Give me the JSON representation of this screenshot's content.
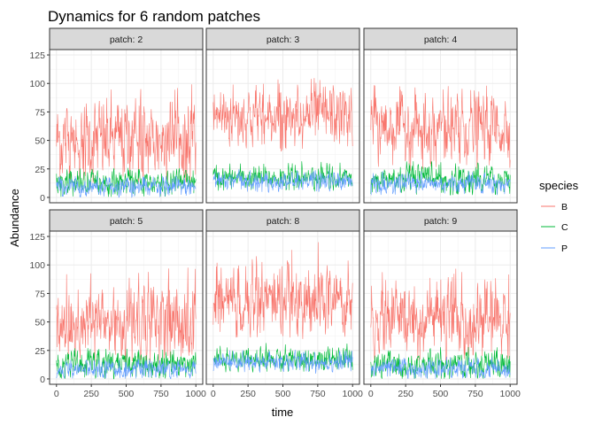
{
  "chart_data": {
    "type": "line",
    "title": "Dynamics for 6 random patches",
    "xlabel": "time",
    "ylabel": "Abundance",
    "xlim": [
      0,
      1000
    ],
    "ylim": [
      0,
      125
    ],
    "x_ticks": [
      0,
      250,
      500,
      750,
      1000
    ],
    "y_ticks": [
      0,
      25,
      50,
      75,
      100,
      125
    ],
    "x_tick_labels": [
      "0",
      "250",
      "500",
      "750",
      "1000"
    ],
    "y_tick_labels": [
      "0",
      "25",
      "50",
      "75",
      "100",
      "125"
    ],
    "grid": true,
    "legend": {
      "title": "species",
      "position": "right",
      "entries": [
        {
          "name": "B",
          "color": "#F8766D"
        },
        {
          "name": "C",
          "color": "#00BA38"
        },
        {
          "name": "P",
          "color": "#619CFF"
        }
      ]
    },
    "panels": [
      {
        "label": "patch: 2",
        "series": [
          {
            "name": "B",
            "mean": 50,
            "spread": 17,
            "max": 100,
            "min": 12
          },
          {
            "name": "C",
            "mean": 13,
            "spread": 6,
            "max": 26,
            "min": 0
          },
          {
            "name": "P",
            "mean": 9,
            "spread": 4,
            "max": 19,
            "min": 0
          }
        ]
      },
      {
        "label": "patch: 3",
        "series": [
          {
            "name": "B",
            "mean": 72,
            "spread": 13,
            "max": 115,
            "min": 40
          },
          {
            "name": "C",
            "mean": 17,
            "spread": 5,
            "max": 35,
            "min": 5
          },
          {
            "name": "P",
            "mean": 14,
            "spread": 4,
            "max": 25,
            "min": 4
          }
        ]
      },
      {
        "label": "patch: 4",
        "series": [
          {
            "name": "B",
            "mean": 62,
            "spread": 14,
            "max": 100,
            "min": 22
          },
          {
            "name": "C",
            "mean": 15,
            "spread": 6,
            "max": 32,
            "min": 2
          },
          {
            "name": "P",
            "mean": 12,
            "spread": 4,
            "max": 23,
            "min": 2
          }
        ]
      },
      {
        "label": "patch: 5",
        "series": [
          {
            "name": "B",
            "mean": 50,
            "spread": 17,
            "max": 100,
            "min": 10
          },
          {
            "name": "C",
            "mean": 12,
            "spread": 6,
            "max": 27,
            "min": 0
          },
          {
            "name": "P",
            "mean": 8,
            "spread": 4,
            "max": 18,
            "min": 0
          }
        ]
      },
      {
        "label": "patch: 8",
        "series": [
          {
            "name": "B",
            "mean": 70,
            "spread": 15,
            "max": 120,
            "min": 35
          },
          {
            "name": "C",
            "mean": 17,
            "spread": 5,
            "max": 32,
            "min": 5
          },
          {
            "name": "P",
            "mean": 15,
            "spread": 4,
            "max": 26,
            "min": 4
          }
        ]
      },
      {
        "label": "patch: 9",
        "series": [
          {
            "name": "B",
            "mean": 52,
            "spread": 16,
            "max": 100,
            "min": 15
          },
          {
            "name": "C",
            "mean": 12,
            "spread": 6,
            "max": 28,
            "min": 0
          },
          {
            "name": "P",
            "mean": 9,
            "spread": 4,
            "max": 20,
            "min": 0
          }
        ]
      }
    ]
  }
}
